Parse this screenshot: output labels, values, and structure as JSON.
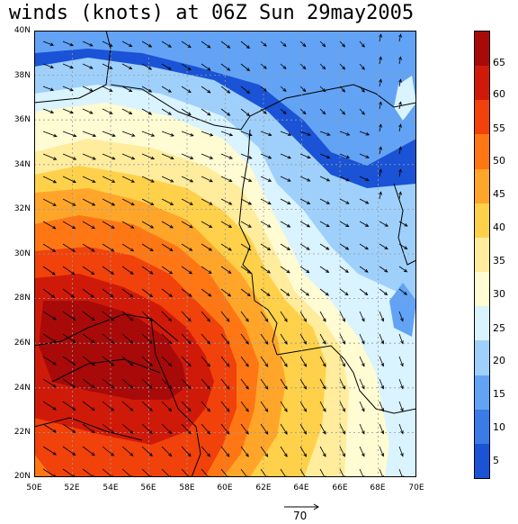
{
  "title": "winds (knots) at 06Z Sun 29may2005",
  "lat_labels": [
    "40N",
    "38N",
    "36N",
    "34N",
    "32N",
    "30N",
    "28N",
    "26N",
    "24N",
    "22N",
    "20N"
  ],
  "lon_labels": [
    "50E",
    "52E",
    "54E",
    "56E",
    "58E",
    "60E",
    "62E",
    "64E",
    "66E",
    "68E",
    "70E"
  ],
  "colorbar": {
    "labels": [
      "65",
      "60",
      "55",
      "50",
      "45",
      "40",
      "35",
      "30",
      "25",
      "20",
      "15",
      "10",
      "5"
    ],
    "colors": [
      "#1a53d6",
      "#3a7be8",
      "#62a3f5",
      "#9fd0fb",
      "#d9f3ff",
      "#fffbd2",
      "#ffec9c",
      "#ffd14a",
      "#ffa62a",
      "#ff7714",
      "#f0420a",
      "#cf1a0a",
      "#a80a0a"
    ]
  },
  "reference_vector": {
    "label": "70"
  }
}
